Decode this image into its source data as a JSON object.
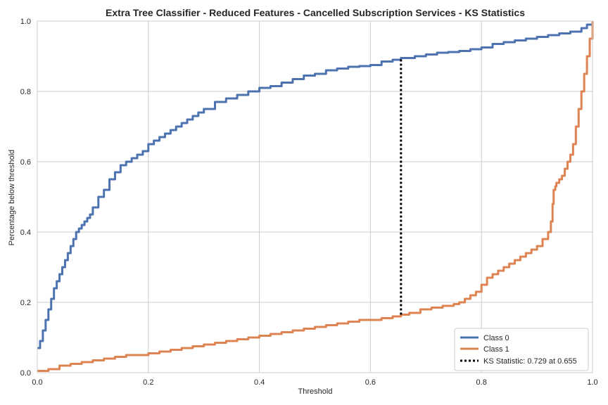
{
  "chart_data": {
    "type": "line",
    "title": "Extra Tree Classifier - Reduced Features - Cancelled Subscription Services - KS Statistics",
    "xlabel": "Threshold",
    "ylabel": "Percentage below threshold",
    "xlim": [
      0,
      1
    ],
    "ylim": [
      0,
      1
    ],
    "xticks": [
      "0.0",
      "0.2",
      "0.4",
      "0.6",
      "0.8",
      "1.0"
    ],
    "yticks": [
      "0.0",
      "0.2",
      "0.4",
      "0.6",
      "0.8",
      "1.0"
    ],
    "grid": true,
    "legend_position": "bottom-right",
    "series": [
      {
        "name": "Class 0",
        "color": "#4c72b0",
        "x": [
          0.0,
          0.005,
          0.01,
          0.015,
          0.02,
          0.025,
          0.03,
          0.035,
          0.04,
          0.045,
          0.05,
          0.055,
          0.06,
          0.065,
          0.07,
          0.075,
          0.08,
          0.085,
          0.09,
          0.095,
          0.1,
          0.11,
          0.12,
          0.13,
          0.14,
          0.15,
          0.16,
          0.17,
          0.18,
          0.19,
          0.2,
          0.21,
          0.22,
          0.23,
          0.24,
          0.25,
          0.26,
          0.27,
          0.28,
          0.29,
          0.3,
          0.32,
          0.34,
          0.36,
          0.38,
          0.4,
          0.42,
          0.44,
          0.46,
          0.48,
          0.5,
          0.52,
          0.54,
          0.56,
          0.58,
          0.6,
          0.62,
          0.64,
          0.655,
          0.68,
          0.7,
          0.72,
          0.74,
          0.76,
          0.78,
          0.8,
          0.82,
          0.84,
          0.86,
          0.88,
          0.9,
          0.92,
          0.94,
          0.96,
          0.98,
          0.99,
          1.0
        ],
        "y": [
          0.07,
          0.09,
          0.12,
          0.15,
          0.18,
          0.21,
          0.24,
          0.26,
          0.28,
          0.3,
          0.32,
          0.34,
          0.36,
          0.38,
          0.4,
          0.41,
          0.42,
          0.43,
          0.44,
          0.45,
          0.47,
          0.5,
          0.52,
          0.55,
          0.57,
          0.59,
          0.6,
          0.61,
          0.62,
          0.63,
          0.65,
          0.66,
          0.67,
          0.68,
          0.69,
          0.7,
          0.71,
          0.72,
          0.73,
          0.74,
          0.75,
          0.77,
          0.78,
          0.79,
          0.8,
          0.81,
          0.815,
          0.825,
          0.835,
          0.845,
          0.85,
          0.86,
          0.865,
          0.87,
          0.872,
          0.875,
          0.885,
          0.89,
          0.895,
          0.9,
          0.905,
          0.91,
          0.912,
          0.915,
          0.92,
          0.925,
          0.935,
          0.94,
          0.945,
          0.95,
          0.955,
          0.96,
          0.965,
          0.97,
          0.98,
          0.99,
          1.0
        ]
      },
      {
        "name": "Class 1",
        "color": "#dd8452",
        "x": [
          0.0,
          0.02,
          0.04,
          0.06,
          0.08,
          0.1,
          0.12,
          0.14,
          0.16,
          0.18,
          0.2,
          0.22,
          0.24,
          0.26,
          0.28,
          0.3,
          0.32,
          0.34,
          0.36,
          0.38,
          0.4,
          0.42,
          0.44,
          0.46,
          0.48,
          0.5,
          0.52,
          0.54,
          0.56,
          0.58,
          0.6,
          0.62,
          0.64,
          0.655,
          0.67,
          0.69,
          0.71,
          0.73,
          0.75,
          0.76,
          0.77,
          0.78,
          0.79,
          0.8,
          0.81,
          0.82,
          0.83,
          0.84,
          0.85,
          0.86,
          0.87,
          0.88,
          0.89,
          0.9,
          0.91,
          0.92,
          0.925,
          0.928,
          0.93,
          0.933,
          0.935,
          0.94,
          0.945,
          0.95,
          0.955,
          0.96,
          0.965,
          0.97,
          0.975,
          0.98,
          0.985,
          0.99,
          0.995,
          1.0
        ],
        "y": [
          0.005,
          0.01,
          0.02,
          0.025,
          0.03,
          0.035,
          0.04,
          0.045,
          0.05,
          0.05,
          0.055,
          0.06,
          0.065,
          0.07,
          0.075,
          0.08,
          0.085,
          0.09,
          0.095,
          0.1,
          0.105,
          0.11,
          0.115,
          0.12,
          0.125,
          0.13,
          0.135,
          0.14,
          0.145,
          0.15,
          0.15,
          0.155,
          0.16,
          0.165,
          0.17,
          0.18,
          0.185,
          0.19,
          0.195,
          0.2,
          0.21,
          0.22,
          0.23,
          0.25,
          0.27,
          0.28,
          0.29,
          0.3,
          0.31,
          0.32,
          0.33,
          0.34,
          0.35,
          0.36,
          0.38,
          0.4,
          0.43,
          0.48,
          0.52,
          0.53,
          0.54,
          0.55,
          0.56,
          0.58,
          0.6,
          0.62,
          0.65,
          0.7,
          0.75,
          0.8,
          0.85,
          0.9,
          0.95,
          1.0
        ]
      }
    ],
    "ks_statistic": {
      "label": "KS Statistic: 0.729 at 0.655",
      "value": 0.729,
      "threshold": 0.655,
      "y_low": 0.165,
      "y_high": 0.894
    }
  }
}
